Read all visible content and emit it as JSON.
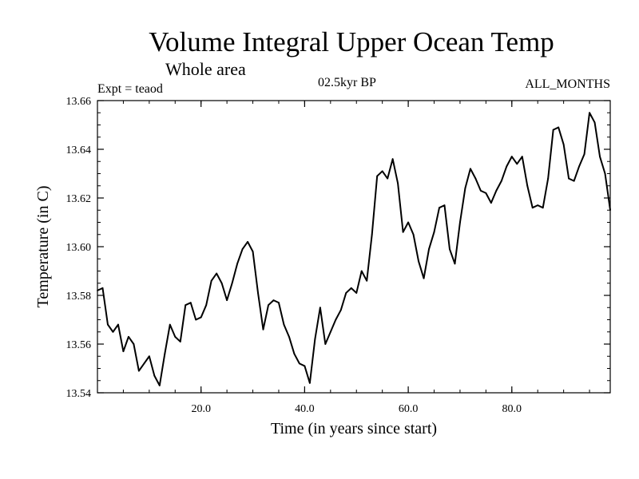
{
  "chart_data": {
    "type": "line",
    "title": "Volume Integral Upper Ocean Temp",
    "subtitle": "Whole area",
    "experiment_label": "Expt = teaod",
    "period_label": "02.5kyr BP",
    "months_label": "ALL_MONTHS",
    "xlabel": "Time (in years since start)",
    "ylabel": "Temperature (in C)",
    "xlim": [
      0,
      99
    ],
    "ylim": [
      13.54,
      13.66
    ],
    "x_ticks": [
      20,
      40,
      60,
      80
    ],
    "x_tick_labels": [
      "20.0",
      "40.0",
      "60.0",
      "80.0"
    ],
    "y_ticks": [
      13.54,
      13.56,
      13.58,
      13.6,
      13.62,
      13.64,
      13.66
    ],
    "y_tick_labels": [
      "13.54",
      "13.56",
      "13.58",
      "13.60",
      "13.62",
      "13.64",
      "13.66"
    ],
    "grid": false,
    "series": [
      {
        "name": "Volume Integral Upper Ocean Temp",
        "x": [
          0,
          1,
          2,
          3,
          4,
          5,
          6,
          7,
          8,
          9,
          10,
          11,
          12,
          13,
          14,
          15,
          16,
          17,
          18,
          19,
          20,
          21,
          22,
          23,
          24,
          25,
          26,
          27,
          28,
          29,
          30,
          31,
          32,
          33,
          34,
          35,
          36,
          37,
          38,
          39,
          40,
          41,
          42,
          43,
          44,
          45,
          46,
          47,
          48,
          49,
          50,
          51,
          52,
          53,
          54,
          55,
          56,
          57,
          58,
          59,
          60,
          61,
          62,
          63,
          64,
          65,
          66,
          67,
          68,
          69,
          70,
          71,
          72,
          73,
          74,
          75,
          76,
          77,
          78,
          79,
          80,
          81,
          82,
          83,
          84,
          85,
          86,
          87,
          88,
          89,
          90,
          91,
          92,
          93,
          94,
          95,
          96,
          97,
          98,
          99
        ],
        "values": [
          13.582,
          13.583,
          13.568,
          13.565,
          13.568,
          13.557,
          13.563,
          13.56,
          13.549,
          13.552,
          13.555,
          13.547,
          13.543,
          13.556,
          13.568,
          13.563,
          13.561,
          13.576,
          13.577,
          13.57,
          13.571,
          13.576,
          13.586,
          13.589,
          13.585,
          13.578,
          13.585,
          13.593,
          13.599,
          13.602,
          13.598,
          13.581,
          13.566,
          13.576,
          13.578,
          13.577,
          13.568,
          13.563,
          13.556,
          13.552,
          13.551,
          13.544,
          13.562,
          13.575,
          13.56,
          13.565,
          13.57,
          13.574,
          13.581,
          13.583,
          13.581,
          13.59,
          13.586,
          13.605,
          13.629,
          13.631,
          13.628,
          13.636,
          13.626,
          13.606,
          13.61,
          13.605,
          13.594,
          13.587,
          13.599,
          13.606,
          13.616,
          13.617,
          13.599,
          13.593,
          13.61,
          13.624,
          13.632,
          13.628,
          13.623,
          13.622,
          13.618,
          13.623,
          13.627,
          13.633,
          13.637,
          13.634,
          13.637,
          13.625,
          13.616,
          13.617,
          13.616,
          13.628,
          13.648,
          13.649,
          13.642,
          13.628,
          13.627,
          13.633,
          13.638,
          13.655,
          13.651,
          13.637,
          13.63,
          13.615
        ]
      }
    ]
  }
}
